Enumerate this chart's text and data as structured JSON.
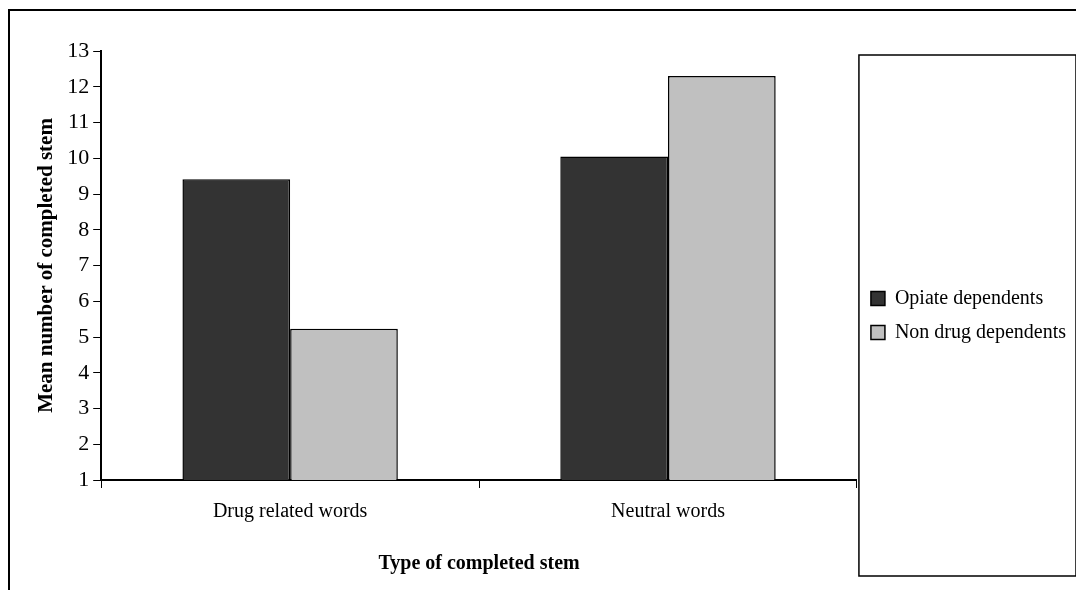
{
  "chart_data": {
    "type": "bar",
    "xlabel": "Type of completed stem",
    "ylabel": "Mean number of completed stem",
    "categories": [
      "Drug related words",
      "Neutral words"
    ],
    "series": [
      {
        "name": "Opiate dependents",
        "color": "#333333",
        "values": [
          9.41,
          10.05
        ]
      },
      {
        "name": "Non drug dependents",
        "color": "#c0c0c0",
        "values": [
          5.23,
          12.3
        ]
      }
    ],
    "ylim": [
      1,
      13
    ],
    "yticks": [
      1,
      2,
      3,
      4,
      5,
      6,
      7,
      8,
      9,
      10,
      11,
      12,
      13
    ],
    "grid": false,
    "legend": "right"
  }
}
